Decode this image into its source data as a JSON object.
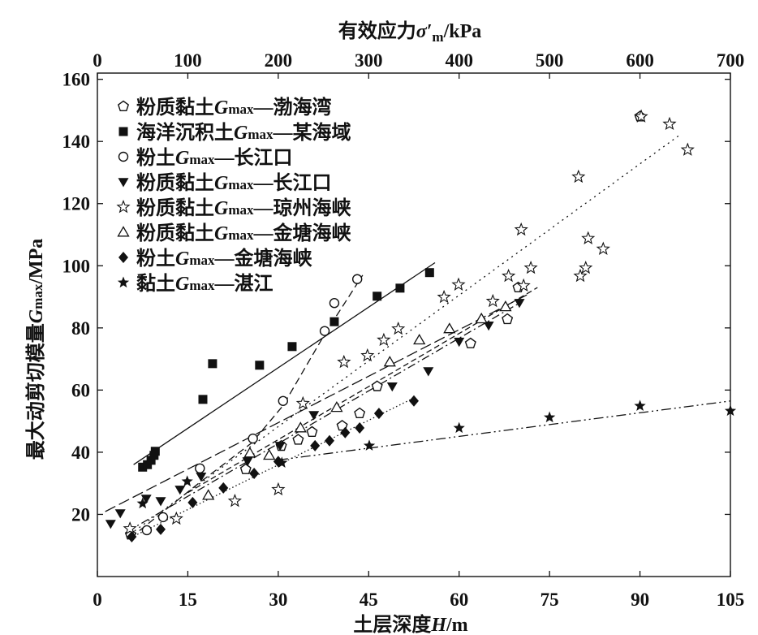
{
  "chart_data": {
    "type": "scatter",
    "xlabel": {
      "prefix": "土层深度",
      "var": "H",
      "suffix": "/m"
    },
    "x2label": {
      "prefix": "有效应力",
      "var": "σ′",
      "sub": "m",
      "suffix": "/kPa"
    },
    "ylabel": {
      "prefix": "最大动剪切模量",
      "var": "G",
      "sub": "max",
      "suffix": "/MPa"
    },
    "xlim": [
      0,
      105
    ],
    "x2lim": [
      0,
      700
    ],
    "ylim": [
      0,
      162
    ],
    "xticks": [
      0,
      15,
      30,
      45,
      60,
      75,
      90,
      105
    ],
    "x2ticks": [
      0,
      100,
      200,
      300,
      400,
      500,
      600,
      700
    ],
    "yticks": [
      20,
      40,
      60,
      80,
      100,
      120,
      140,
      160
    ],
    "grid": false,
    "legend_position": "top-left",
    "series": [
      {
        "name": {
          "pre": "粉质黏土",
          "var": "G",
          "sub": "max",
          "post": "—渤海湾"
        },
        "marker": "pentagon-open",
        "points": [
          [
            5.5,
            13.5
          ],
          [
            24.6,
            34.5
          ],
          [
            30.5,
            42.0
          ],
          [
            33.3,
            44.0
          ],
          [
            35.6,
            46.5
          ],
          [
            40.6,
            48.5
          ],
          [
            43.5,
            52.5
          ],
          [
            46.4,
            61.2
          ],
          [
            61.9,
            75.0
          ],
          [
            68.0,
            82.8
          ],
          [
            69.8,
            93.0
          ],
          [
            90.0,
            148.0
          ]
        ],
        "fit": [
          [
            5.0,
            14.5
          ],
          [
            70.0,
            88.0
          ]
        ]
      },
      {
        "name": {
          "pre": "海洋沉积土",
          "var": "G",
          "sub": "max",
          "post": "—某海域"
        },
        "marker": "square-filled",
        "points": [
          [
            7.5,
            35.2
          ],
          [
            8.3,
            36.0
          ],
          [
            8.9,
            37.4
          ],
          [
            9.4,
            39.0
          ],
          [
            9.6,
            40.3
          ],
          [
            17.5,
            57.0
          ],
          [
            19.1,
            68.5
          ],
          [
            26.9,
            68.0
          ],
          [
            32.3,
            74.0
          ],
          [
            39.3,
            82.0
          ],
          [
            46.4,
            90.2
          ],
          [
            50.2,
            92.8
          ],
          [
            55.1,
            97.8
          ]
        ],
        "fit": [
          [
            6.0,
            36.0
          ],
          [
            56.0,
            101.0
          ]
        ]
      },
      {
        "name": {
          "pre": "粉土",
          "var": "G",
          "sub": "max",
          "post": "—长江口"
        },
        "marker": "circle-open",
        "points": [
          [
            8.2,
            14.9
          ],
          [
            10.9,
            19.1
          ],
          [
            17.0,
            34.8
          ],
          [
            25.8,
            44.4
          ],
          [
            30.8,
            56.5
          ],
          [
            37.7,
            79.0
          ],
          [
            39.3,
            88.0
          ],
          [
            43.1,
            95.7
          ]
        ],
        "fit": [
          [
            5.5,
            12.5
          ],
          [
            16.8,
            30.0
          ],
          [
            25.6,
            43.0
          ],
          [
            30.8,
            55.0
          ],
          [
            37.7,
            78.0
          ],
          [
            44.0,
            97.0
          ]
        ]
      },
      {
        "name": {
          "pre": "粉质黏土",
          "var": "G",
          "sub": "max",
          "post": "—长江口"
        },
        "marker": "triangle-down-filled",
        "points": [
          [
            2.2,
            17.0
          ],
          [
            3.8,
            20.4
          ],
          [
            8.1,
            25.1
          ],
          [
            10.5,
            24.3
          ],
          [
            13.7,
            28.0
          ],
          [
            17.2,
            32.2
          ],
          [
            24.9,
            37.1
          ],
          [
            30.3,
            42.1
          ],
          [
            35.9,
            52.0
          ],
          [
            48.9,
            61.2
          ],
          [
            54.9,
            66.1
          ],
          [
            60.0,
            75.6
          ],
          [
            64.9,
            80.8
          ],
          [
            70.0,
            88.1
          ]
        ],
        "fit": [
          [
            1.3,
            20.9
          ],
          [
            71.3,
            90.7
          ]
        ]
      },
      {
        "name": {
          "pre": "粉质黏土",
          "var": "G",
          "sub": "max",
          "post": "—琼州海峡"
        },
        "marker": "star-open",
        "points": [
          [
            5.4,
            15.4
          ],
          [
            13.1,
            18.6
          ],
          [
            22.8,
            24.3
          ],
          [
            30.0,
            28.0
          ],
          [
            34.1,
            55.7
          ],
          [
            40.9,
            69.0
          ],
          [
            44.8,
            71.1
          ],
          [
            47.5,
            76.1
          ],
          [
            49.9,
            79.7
          ],
          [
            57.5,
            89.9
          ],
          [
            59.9,
            93.9
          ],
          [
            65.6,
            88.6
          ],
          [
            68.2,
            96.7
          ],
          [
            70.3,
            111.6
          ],
          [
            70.7,
            93.6
          ],
          [
            71.9,
            99.3
          ],
          [
            79.8,
            128.6
          ],
          [
            80.1,
            96.7
          ],
          [
            81.0,
            99.3
          ],
          [
            81.4,
            108.8
          ],
          [
            83.9,
            105.4
          ],
          [
            90.2,
            148.0
          ],
          [
            94.9,
            145.6
          ],
          [
            97.9,
            137.3
          ]
        ],
        "fit": [
          [
            5.4,
            13.6
          ],
          [
            96.9,
            142.5
          ]
        ]
      },
      {
        "name": {
          "pre": "粉质黏土",
          "var": "G",
          "sub": "max",
          "post": "—金塘海峡"
        },
        "marker": "triangle-up-open",
        "points": [
          [
            18.4,
            26.1
          ],
          [
            25.3,
            39.7
          ],
          [
            28.5,
            39.0
          ],
          [
            33.7,
            47.8
          ],
          [
            39.7,
            54.4
          ],
          [
            48.5,
            69.0
          ],
          [
            53.4,
            76.1
          ],
          [
            58.4,
            79.7
          ],
          [
            63.7,
            82.9
          ],
          [
            67.7,
            86.8
          ]
        ],
        "fit": [
          [
            15.0,
            27.0
          ],
          [
            73.0,
            93.0
          ]
        ]
      },
      {
        "name": {
          "pre": "粉土",
          "var": "G",
          "sub": "max",
          "post": "—金塘海峡"
        },
        "marker": "diamond-filled",
        "points": [
          [
            5.7,
            12.8
          ],
          [
            10.5,
            15.2
          ],
          [
            15.8,
            23.8
          ],
          [
            20.9,
            28.5
          ],
          [
            26.0,
            33.2
          ],
          [
            30.0,
            37.0
          ],
          [
            36.1,
            42.1
          ],
          [
            38.5,
            43.7
          ],
          [
            41.1,
            46.3
          ],
          [
            43.5,
            47.8
          ],
          [
            46.7,
            52.5
          ],
          [
            52.5,
            56.5
          ]
        ],
        "fit": [
          [
            5.0,
            12.0
          ],
          [
            52.0,
            57.0
          ]
        ]
      },
      {
        "name": {
          "pre": "黏土",
          "var": "G",
          "sub": "max",
          "post": "—湛江"
        },
        "marker": "star-filled",
        "points": [
          [
            7.5,
            23.5
          ],
          [
            14.9,
            30.6
          ],
          [
            30.6,
            36.6
          ],
          [
            45.1,
            42.1
          ],
          [
            60.0,
            47.8
          ],
          [
            75.0,
            51.2
          ],
          [
            90.0,
            54.9
          ],
          [
            105.0,
            53.3
          ]
        ],
        "fit": [
          [
            30.0,
            37.5
          ],
          [
            105.0,
            56.5
          ]
        ]
      }
    ]
  }
}
